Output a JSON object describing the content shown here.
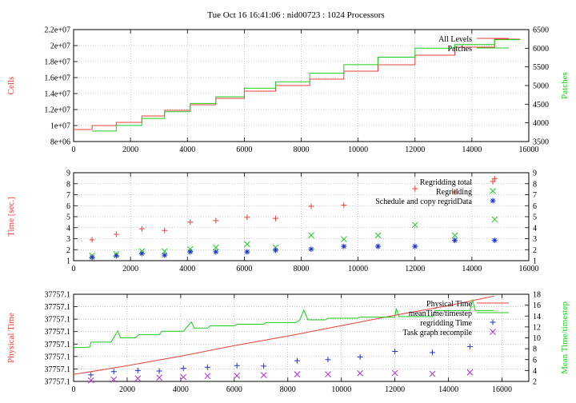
{
  "title": "Tue Oct 16 16:41:06 : nid00723 : 1024 Processors",
  "colors": {
    "red": "#e8403a",
    "green": "#1fcc1f",
    "blue": "#2233cc",
    "purple": "#b12fd8",
    "axis": "#000000",
    "grid": "#a0a0a0"
  },
  "chart_data": [
    {
      "type": "line",
      "panel": "top",
      "ylabel": "Cells",
      "y2label": "Patches",
      "xlim": [
        0,
        16000
      ],
      "ylim": [
        8000000,
        22000000
      ],
      "y2lim": [
        3500,
        6500
      ],
      "xticks": [
        0,
        2000,
        4000,
        6000,
        8000,
        10000,
        12000,
        14000,
        16000
      ],
      "yticks": [
        "8e+06",
        "1e+07",
        "1.2e+07",
        "1.4e+07",
        "1.6e+07",
        "1.8e+07",
        "2e+07",
        "2.2e+07"
      ],
      "y2ticks": [
        3500,
        4000,
        4500,
        5000,
        5500,
        6000,
        6500
      ],
      "grid": true,
      "legend": "top-right",
      "series": [
        {
          "name": "All Levels",
          "color": "red",
          "axis": "left",
          "steps": [
            [
              0,
              9500000
            ],
            [
              650,
              9500000
            ],
            [
              650,
              10000000
            ],
            [
              1500,
              10000000
            ],
            [
              1500,
              10400000
            ],
            [
              2400,
              10400000
            ],
            [
              2400,
              11200000
            ],
            [
              3200,
              11200000
            ],
            [
              3200,
              11900000
            ],
            [
              4100,
              11900000
            ],
            [
              4100,
              12600000
            ],
            [
              5000,
              12600000
            ],
            [
              5000,
              13400000
            ],
            [
              6000,
              13400000
            ],
            [
              6000,
              14300000
            ],
            [
              7100,
              14300000
            ],
            [
              7100,
              15000000
            ],
            [
              8300,
              15000000
            ],
            [
              8300,
              15800000
            ],
            [
              9500,
              15800000
            ],
            [
              9500,
              16800000
            ],
            [
              10700,
              16800000
            ],
            [
              10700,
              17600000
            ],
            [
              12000,
              17600000
            ],
            [
              12000,
              18800000
            ],
            [
              13400,
              18800000
            ],
            [
              13400,
              19800000
            ],
            [
              14800,
              19800000
            ],
            [
              14800,
              20800000
            ],
            [
              15700,
              20800000
            ]
          ]
        },
        {
          "name": "Patches",
          "color": "green",
          "axis": "right",
          "steps": [
            [
              650,
              3780
            ],
            [
              1500,
              3780
            ],
            [
              1500,
              3930
            ],
            [
              2400,
              3930
            ],
            [
              2400,
              4120
            ],
            [
              3200,
              4120
            ],
            [
              3200,
              4300
            ],
            [
              4100,
              4300
            ],
            [
              4100,
              4520
            ],
            [
              5000,
              4520
            ],
            [
              5000,
              4700
            ],
            [
              6000,
              4700
            ],
            [
              6000,
              4930
            ],
            [
              7100,
              4930
            ],
            [
              7100,
              5100
            ],
            [
              8300,
              5100
            ],
            [
              8300,
              5330
            ],
            [
              9500,
              5330
            ],
            [
              9500,
              5560
            ],
            [
              10700,
              5560
            ],
            [
              10700,
              5760
            ],
            [
              12000,
              5760
            ],
            [
              12000,
              6000
            ],
            [
              13400,
              6000
            ],
            [
              13400,
              6100
            ],
            [
              14800,
              6100
            ],
            [
              14800,
              6230
            ],
            [
              15700,
              6230
            ]
          ]
        }
      ]
    },
    {
      "type": "scatter",
      "panel": "middle",
      "ylabel": "Time [sec.]",
      "xlim": [
        0,
        16000
      ],
      "ylim": [
        1,
        9
      ],
      "y2lim": [
        1,
        9
      ],
      "xticks": [
        0,
        2000,
        4000,
        6000,
        8000,
        10000,
        12000,
        14000,
        16000
      ],
      "yticks": [
        1,
        2,
        3,
        4,
        5,
        6,
        7,
        8,
        9
      ],
      "y2ticks": [
        1,
        2,
        3,
        4,
        5,
        6,
        7,
        8,
        9
      ],
      "grid": true,
      "legend": "top-right",
      "series": [
        {
          "name": "Regridding total",
          "color": "red",
          "marker": "plus",
          "points": [
            [
              650,
              2.9
            ],
            [
              1500,
              3.4
            ],
            [
              2400,
              3.9
            ],
            [
              3200,
              3.75
            ],
            [
              4100,
              4.5
            ],
            [
              5000,
              4.65
            ],
            [
              6100,
              4.95
            ],
            [
              7100,
              4.85
            ],
            [
              8350,
              5.95
            ],
            [
              9500,
              6.05
            ],
            [
              12000,
              7.55
            ],
            [
              13400,
              7.25
            ],
            [
              14800,
              8.45
            ]
          ]
        },
        {
          "name": "Regridding",
          "color": "green",
          "marker": "x",
          "points": [
            [
              650,
              1.45
            ],
            [
              1500,
              1.6
            ],
            [
              2400,
              1.85
            ],
            [
              3200,
              1.85
            ],
            [
              4100,
              2.05
            ],
            [
              5000,
              2.2
            ],
            [
              6100,
              2.5
            ],
            [
              7100,
              2.2
            ],
            [
              8350,
              3.3
            ],
            [
              9500,
              2.95
            ],
            [
              10700,
              3.3
            ],
            [
              12000,
              4.25
            ],
            [
              13400,
              3.3
            ],
            [
              14800,
              4.75
            ]
          ]
        },
        {
          "name": "Schedule and copy regridData",
          "color": "blue",
          "marker": "star",
          "points": [
            [
              650,
              1.3
            ],
            [
              1500,
              1.45
            ],
            [
              2400,
              1.65
            ],
            [
              3200,
              1.5
            ],
            [
              4100,
              1.8
            ],
            [
              5000,
              1.8
            ],
            [
              6100,
              1.8
            ],
            [
              7100,
              1.95
            ],
            [
              8350,
              2.05
            ],
            [
              9500,
              2.3
            ],
            [
              10700,
              2.3
            ],
            [
              12000,
              2.3
            ],
            [
              13400,
              2.85
            ],
            [
              14800,
              2.85
            ]
          ]
        }
      ]
    },
    {
      "type": "line",
      "panel": "bottom",
      "ylabel": "Physical Time",
      "y2label": "Mean Time/timestep",
      "xlim": [
        0,
        17000
      ],
      "y2lim": [
        2,
        18
      ],
      "xticks": [
        0,
        2000,
        4000,
        6000,
        8000,
        10000,
        12000,
        14000,
        16000
      ],
      "yticks": [
        "37757.1",
        "37757.1",
        "37757.1",
        "37757.1",
        "37757.1",
        "37757.1",
        "37757.1",
        "37757.1"
      ],
      "y2ticks": [
        2,
        4,
        6,
        8,
        10,
        12,
        14,
        16,
        18
      ],
      "grid": true,
      "legend": "top-right",
      "series": [
        {
          "name": "Physical Time",
          "color": "red",
          "axis": "left",
          "style": "line",
          "points": [
            [
              0,
              0.08
            ],
            [
              2000,
              0.18
            ],
            [
              4000,
              0.29
            ],
            [
              6000,
              0.41
            ],
            [
              8000,
              0.52
            ],
            [
              10000,
              0.64
            ],
            [
              12000,
              0.76
            ],
            [
              14000,
              0.87
            ],
            [
              15700,
              0.98
            ]
          ]
        },
        {
          "name": "meanTime/timestep",
          "color": "green",
          "axis": "right",
          "style": "line",
          "points": [
            [
              0,
              8.2
            ],
            [
              600,
              8.3
            ],
            [
              650,
              9.2
            ],
            [
              1400,
              9.2
            ],
            [
              1500,
              10.0
            ],
            [
              1650,
              11.3
            ],
            [
              1750,
              10.0
            ],
            [
              2300,
              10.0
            ],
            [
              2450,
              10.6
            ],
            [
              3200,
              10.6
            ],
            [
              3300,
              11.2
            ],
            [
              4100,
              11.2
            ],
            [
              4200,
              11.8
            ],
            [
              4400,
              12.9
            ],
            [
              4500,
              11.8
            ],
            [
              5000,
              11.8
            ],
            [
              5100,
              12.2
            ],
            [
              6000,
              12.2
            ],
            [
              6100,
              12.5
            ],
            [
              7100,
              12.5
            ],
            [
              7200,
              12.8
            ],
            [
              8300,
              12.8
            ],
            [
              8450,
              13.3
            ],
            [
              8600,
              15.1
            ],
            [
              8750,
              13.3
            ],
            [
              9400,
              13.3
            ],
            [
              9500,
              13.6
            ],
            [
              10600,
              13.6
            ],
            [
              10700,
              13.8
            ],
            [
              12000,
              13.8
            ],
            [
              12050,
              15.4
            ],
            [
              12150,
              13.9
            ],
            [
              13400,
              13.9
            ],
            [
              13500,
              15.0
            ],
            [
              14800,
              15.0
            ],
            [
              14900,
              16.9
            ],
            [
              15000,
              15.0
            ],
            [
              15700,
              15.0
            ]
          ]
        },
        {
          "name": "regridding Time",
          "color": "blue",
          "axis": "right",
          "style": "plus",
          "points": [
            [
              650,
              3.2
            ],
            [
              1500,
              3.8
            ],
            [
              2400,
              4.0
            ],
            [
              3200,
              3.9
            ],
            [
              4100,
              4.4
            ],
            [
              5000,
              4.6
            ],
            [
              6100,
              4.9
            ],
            [
              7100,
              4.8
            ],
            [
              8350,
              5.8
            ],
            [
              9500,
              6.0
            ],
            [
              10700,
              6.5
            ],
            [
              12000,
              7.5
            ],
            [
              13400,
              7.3
            ],
            [
              14800,
              8.4
            ]
          ]
        },
        {
          "name": "Task graph recompile",
          "color": "purple",
          "axis": "right",
          "style": "x",
          "points": [
            [
              650,
              2.2
            ],
            [
              1500,
              2.35
            ],
            [
              2400,
              2.55
            ],
            [
              3200,
              2.7
            ],
            [
              4100,
              2.8
            ],
            [
              5000,
              3.0
            ],
            [
              6100,
              3.05
            ],
            [
              7100,
              3.15
            ],
            [
              8350,
              3.3
            ],
            [
              9500,
              3.3
            ],
            [
              10700,
              3.5
            ],
            [
              12000,
              3.55
            ],
            [
              13400,
              3.4
            ],
            [
              14800,
              3.65
            ]
          ]
        }
      ]
    }
  ]
}
